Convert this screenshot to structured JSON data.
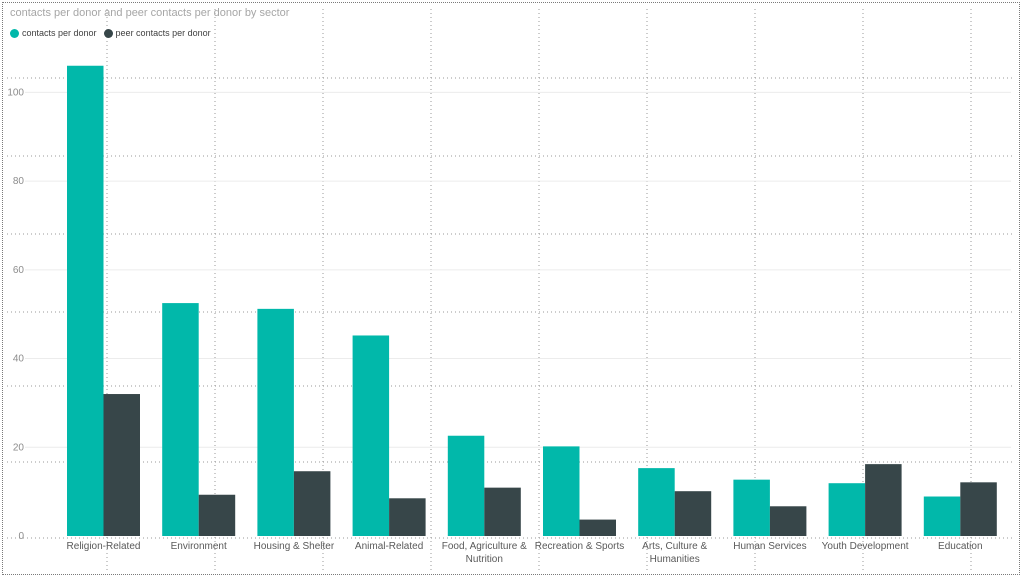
{
  "chart_data": {
    "type": "bar",
    "title": "contacts per donor and peer contacts per donor by sector",
    "xlabel": "",
    "ylabel": "",
    "ylim": [
      0,
      110
    ],
    "yticks": [
      0,
      20,
      40,
      60,
      80,
      100
    ],
    "grid": true,
    "legend_position": "top-left",
    "categories": [
      [
        "Religion-Related"
      ],
      [
        "Environment"
      ],
      [
        "Housing & Shelter"
      ],
      [
        "Animal-Related"
      ],
      [
        "Food, Agriculture &",
        "Nutrition"
      ],
      [
        "Recreation & Sports"
      ],
      [
        "Arts, Culture &",
        "Humanities"
      ],
      [
        "Human Services"
      ],
      [
        "Youth Development"
      ],
      [
        "Education"
      ]
    ],
    "series": [
      {
        "name": "contacts per donor",
        "color": "#01b8aa",
        "values": [
          106,
          52.5,
          51.2,
          45.2,
          22.6,
          20.2,
          15.3,
          12.7,
          11.9,
          8.9
        ]
      },
      {
        "name": "peer contacts per donor",
        "color": "#374649",
        "values": [
          32,
          9.3,
          14.6,
          8.5,
          10.9,
          3.7,
          10.1,
          6.7,
          16.2,
          12.1
        ]
      }
    ]
  }
}
